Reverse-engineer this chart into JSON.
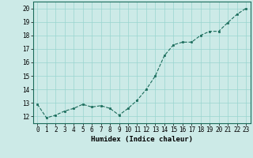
{
  "x": [
    0,
    1,
    2,
    3,
    4,
    5,
    6,
    7,
    8,
    9,
    10,
    11,
    12,
    13,
    14,
    15,
    16,
    17,
    18,
    19,
    20,
    21,
    22,
    23
  ],
  "y": [
    12.9,
    11.9,
    12.1,
    12.4,
    12.6,
    12.9,
    12.7,
    12.8,
    12.6,
    12.1,
    12.6,
    13.2,
    14.0,
    15.0,
    16.5,
    17.3,
    17.5,
    17.5,
    18.0,
    18.3,
    18.3,
    18.95,
    19.55,
    20.0
  ],
  "xlabel": "Humidex (Indice chaleur)",
  "line_color": "#1a6b5a",
  "marker_color": "#1a6b5a",
  "bg_color": "#cceae7",
  "grid_color": "#99d5d0",
  "ylim": [
    11.5,
    20.5
  ],
  "xlim": [
    -0.5,
    23.5
  ],
  "yticks": [
    12,
    13,
    14,
    15,
    16,
    17,
    18,
    19,
    20
  ],
  "xticks": [
    0,
    1,
    2,
    3,
    4,
    5,
    6,
    7,
    8,
    9,
    10,
    11,
    12,
    13,
    14,
    15,
    16,
    17,
    18,
    19,
    20,
    21,
    22,
    23
  ],
  "tick_fontsize": 5.5,
  "xlabel_fontsize": 6.5
}
